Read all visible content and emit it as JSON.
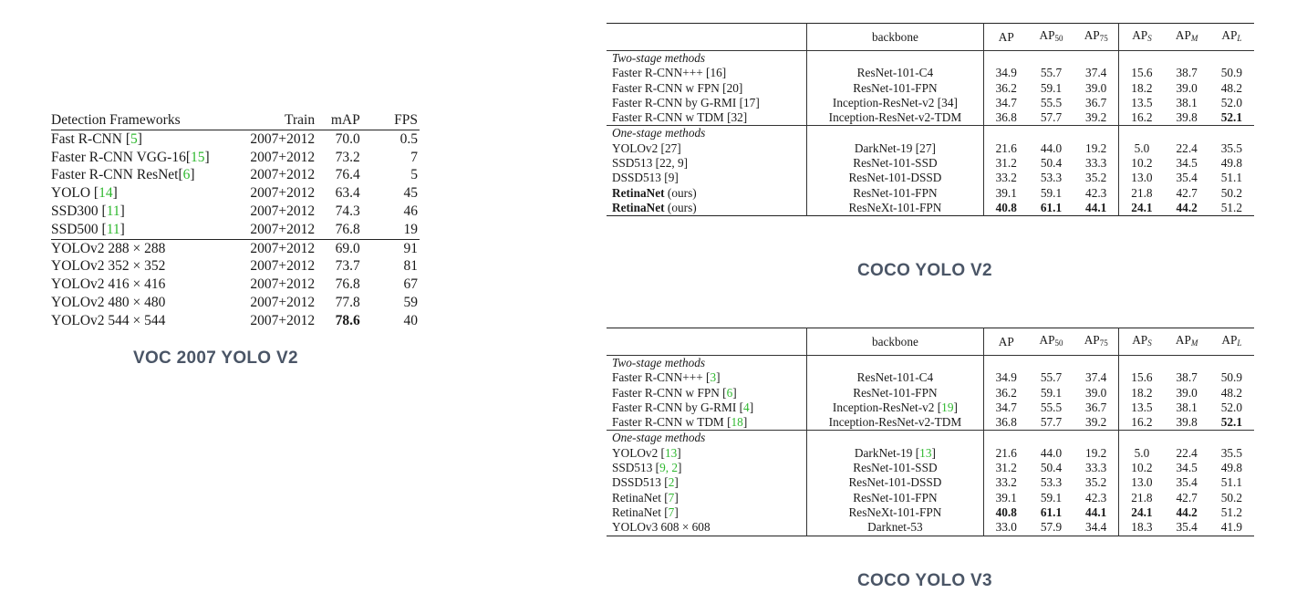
{
  "voc": {
    "caption": "VOC 2007 YOLO V2",
    "headers": [
      "Detection Frameworks",
      "Train",
      "mAP",
      "FPS"
    ],
    "rows": [
      [
        "Fast R-CNN [",
        "5",
        "]",
        "2007+2012",
        "70.0",
        "0.5"
      ],
      [
        "Faster R-CNN VGG-16[",
        "15",
        "]",
        "2007+2012",
        "73.2",
        "7"
      ],
      [
        "Faster R-CNN ResNet[",
        "6",
        "]",
        "2007+2012",
        "76.4",
        "5"
      ],
      [
        "YOLO [",
        "14",
        "]",
        "2007+2012",
        "63.4",
        "45"
      ],
      [
        "SSD300 [",
        "11",
        "]",
        "2007+2012",
        "74.3",
        "46"
      ],
      [
        "SSD500 [",
        "11",
        "]",
        "2007+2012",
        "76.8",
        "19"
      ],
      [
        "YOLOv2 288 × 288",
        "",
        "",
        "2007+2012",
        "69.0",
        "91"
      ],
      [
        "YOLOv2 352 × 352",
        "",
        "",
        "2007+2012",
        "73.7",
        "81"
      ],
      [
        "YOLOv2 416 × 416",
        "",
        "",
        "2007+2012",
        "76.8",
        "67"
      ],
      [
        "YOLOv2 480 × 480",
        "",
        "",
        "2007+2012",
        "77.8",
        "59"
      ],
      [
        "YOLOv2 544 × 544",
        "",
        "",
        "2007+2012",
        "78.6",
        "40"
      ]
    ]
  },
  "coco2": {
    "caption": "COCO YOLO V2",
    "headers": {
      "backbone": "backbone",
      "ap": "AP",
      "ap_base": "AP",
      "ap50_sub": "50",
      "ap75_sub": "75",
      "aps_sub": "S",
      "apm_sub": "M",
      "apl_sub": "L"
    },
    "section_two": "Two-stage methods",
    "section_one": "One-stage methods",
    "two_stage": [
      [
        "Faster R-CNN+++ [16]",
        "ResNet-101-C4",
        "34.9",
        "55.7",
        "37.4",
        "15.6",
        "38.7",
        "50.9"
      ],
      [
        "Faster R-CNN w FPN [20]",
        "ResNet-101-FPN",
        "36.2",
        "59.1",
        "39.0",
        "18.2",
        "39.0",
        "48.2"
      ],
      [
        "Faster R-CNN by G-RMI [17]",
        "Inception-ResNet-v2 [34]",
        "34.7",
        "55.5",
        "36.7",
        "13.5",
        "38.1",
        "52.0"
      ],
      [
        "Faster R-CNN w TDM [32]",
        "Inception-ResNet-v2-TDM",
        "36.8",
        "57.7",
        "39.2",
        "16.2",
        "39.8",
        "52.1"
      ]
    ],
    "one_stage": [
      [
        "YOLOv2 [27]",
        "DarkNet-19 [27]",
        "21.6",
        "44.0",
        "19.2",
        "5.0",
        "22.4",
        "35.5"
      ],
      [
        "SSD513 [22, 9]",
        "ResNet-101-SSD",
        "31.2",
        "50.4",
        "33.3",
        "10.2",
        "34.5",
        "49.8"
      ],
      [
        "DSSD513 [9]",
        "ResNet-101-DSSD",
        "33.2",
        "53.3",
        "35.2",
        "13.0",
        "35.4",
        "51.1"
      ],
      [
        "RetinaNet",
        "ResNet-101-FPN",
        "39.1",
        "59.1",
        "42.3",
        "21.8",
        "42.7",
        "50.2"
      ],
      [
        "RetinaNet",
        "ResNeXt-101-FPN",
        "40.8",
        "61.1",
        "44.1",
        "24.1",
        "44.2",
        "51.2"
      ]
    ],
    "ours_suffix": " (ours)"
  },
  "coco3": {
    "caption": "COCO YOLO V3",
    "two_stage": [
      [
        "Faster R-CNN+++ [",
        "3",
        "]",
        "ResNet-101-C4",
        "",
        "34.9",
        "55.7",
        "37.4",
        "15.6",
        "38.7",
        "50.9"
      ],
      [
        "Faster R-CNN w FPN [",
        "6",
        "]",
        "ResNet-101-FPN",
        "",
        "36.2",
        "59.1",
        "39.0",
        "18.2",
        "39.0",
        "48.2"
      ],
      [
        "Faster R-CNN by G-RMI [",
        "4",
        "]",
        "Inception-ResNet-v2 [",
        "19",
        "34.7",
        "55.5",
        "36.7",
        "13.5",
        "38.1",
        "52.0"
      ],
      [
        "Faster R-CNN w TDM [",
        "18",
        "]",
        "Inception-ResNet-v2-TDM",
        "",
        "36.8",
        "57.7",
        "39.2",
        "16.2",
        "39.8",
        "52.1"
      ]
    ],
    "one_stage": [
      [
        "YOLOv2 [",
        "13",
        "]",
        "DarkNet-19 [",
        "13",
        "21.6",
        "44.0",
        "19.2",
        "5.0",
        "22.4",
        "35.5"
      ],
      [
        "SSD513 [",
        "9, 2",
        "]",
        "ResNet-101-SSD",
        "",
        "31.2",
        "50.4",
        "33.3",
        "10.2",
        "34.5",
        "49.8"
      ],
      [
        "DSSD513 [",
        "2",
        "]",
        "ResNet-101-DSSD",
        "",
        "33.2",
        "53.3",
        "35.2",
        "13.0",
        "35.4",
        "51.1"
      ],
      [
        "RetinaNet [",
        "7",
        "]",
        "ResNet-101-FPN",
        "",
        "39.1",
        "59.1",
        "42.3",
        "21.8",
        "42.7",
        "50.2"
      ],
      [
        "RetinaNet [",
        "7",
        "]",
        "ResNeXt-101-FPN",
        "",
        "40.8",
        "61.1",
        "44.1",
        "24.1",
        "44.2",
        "51.2"
      ],
      [
        "YOLOv3 608 × 608",
        "",
        "",
        "Darknet-53",
        "",
        "33.0",
        "57.9",
        "34.4",
        "18.3",
        "35.4",
        "41.9"
      ]
    ]
  },
  "colors": {
    "citation": "#2fb82f",
    "caption": "#4a5566"
  }
}
